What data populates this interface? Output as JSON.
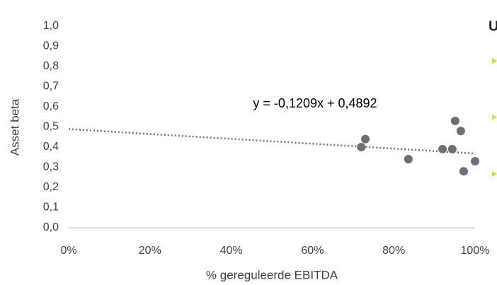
{
  "chart_data": {
    "type": "scatter",
    "x_label": "% gereguleerde EBITDA",
    "y_label": "Asset beta",
    "annotation": "y = -0,1209x + 0,4892",
    "side_text": "U",
    "x": [
      72,
      73,
      83.6,
      92,
      94.4,
      95.1,
      96.5,
      97.2,
      100
    ],
    "values": [
      0.4,
      0.44,
      0.34,
      0.39,
      0.39,
      0.53,
      0.48,
      0.28,
      0.33
    ],
    "color": "#6e6e78",
    "trendline": {
      "x": [
        0,
        100
      ],
      "values": [
        0.4892,
        0.3683
      ],
      "color": "#707070"
    },
    "xlim": [
      0,
      100
    ],
    "xticks": [
      {
        "value": 0,
        "label": "0%"
      },
      {
        "value": 20,
        "label": "20%"
      },
      {
        "value": 40,
        "label": "40%"
      },
      {
        "value": 60,
        "label": "60%"
      },
      {
        "value": 80,
        "label": "80%"
      },
      {
        "value": 100,
        "label": "100%"
      }
    ],
    "ylim": [
      0,
      1
    ],
    "yticks": [
      {
        "value": 0,
        "label": "0,0"
      },
      {
        "value": 0.1,
        "label": "0,1"
      },
      {
        "value": 0.2,
        "label": "0,2"
      },
      {
        "value": 0.3,
        "label": "0,3"
      },
      {
        "value": 0.4,
        "label": "0,4"
      },
      {
        "value": 0.5,
        "label": "0,5"
      },
      {
        "value": 0.6,
        "label": "0,6"
      },
      {
        "value": 0.7,
        "label": "0,7"
      },
      {
        "value": 0.8,
        "label": "0,8"
      },
      {
        "value": 0.9,
        "label": "0,9"
      },
      {
        "value": 1,
        "label": "1,0"
      }
    ]
  }
}
